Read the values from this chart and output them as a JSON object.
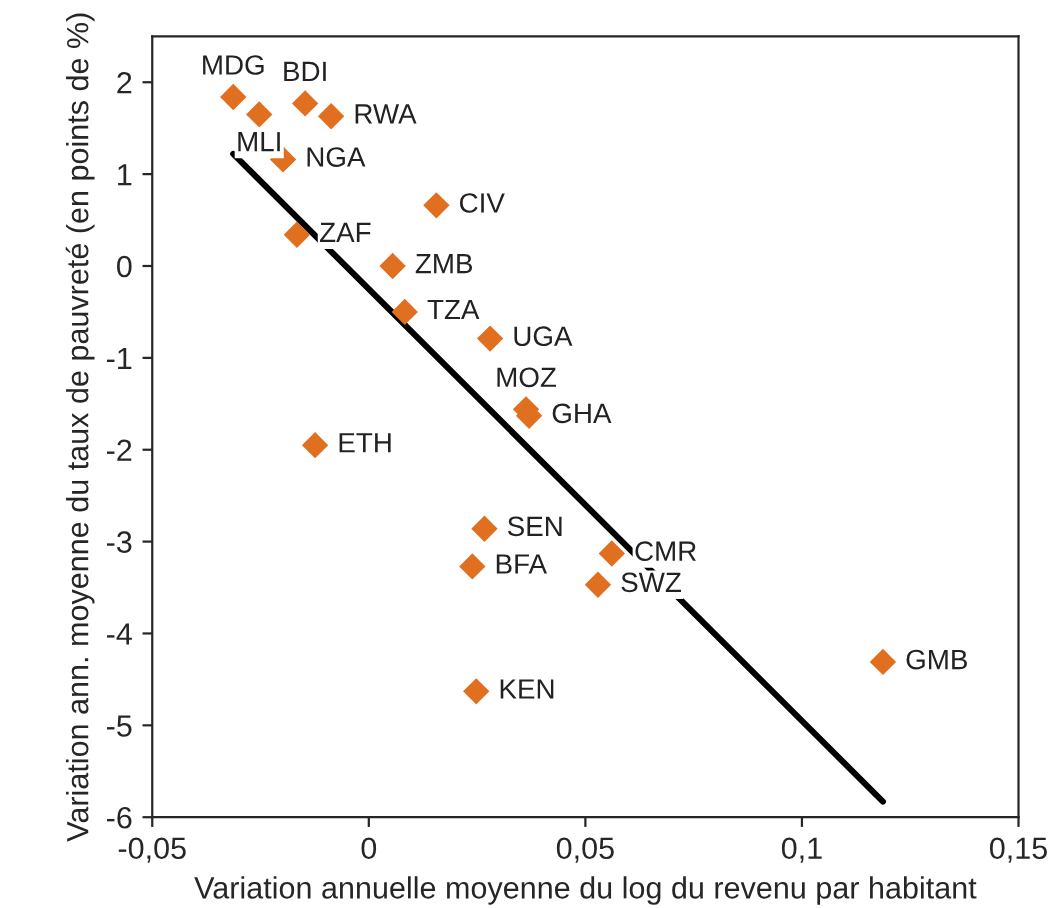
{
  "chart_data": {
    "type": "scatter",
    "xlabel": "Variation annuelle moyenne du log du revenu par habitant",
    "ylabel": "Variation ann. moyenne du taux de pauvreté (en points de %)",
    "xlim": [
      -0.05,
      0.15
    ],
    "xticks": [
      {
        "value": -0.05,
        "label": "-0,05"
      },
      0,
      {
        "value": 0.05,
        "label": "0,05"
      },
      {
        "value": 0.1,
        "label": "0,1"
      },
      {
        "value": 0.15,
        "label": "0,15"
      }
    ],
    "ylim": [
      -6,
      2.5
    ],
    "yticks": [
      -6,
      -5,
      -4,
      -3,
      -2,
      -1,
      0,
      1,
      2
    ],
    "grid": false,
    "legend": false,
    "series": [
      {
        "marker": "diamond",
        "color": "#e07020",
        "x": [
          -0.0313,
          -0.0253,
          -0.0147,
          -0.0087,
          -0.0198,
          0.0156,
          -0.0166,
          0.0055,
          0.0083,
          0.028,
          0.0363,
          0.037,
          -0.0124,
          0.0267,
          0.0561,
          0.0239,
          0.0529,
          0.0248,
          0.1187
        ],
        "values": [
          1.84,
          1.65,
          1.77,
          1.63,
          1.16,
          0.66,
          0.34,
          0.0,
          -0.5,
          -0.79,
          -1.56,
          -1.63,
          -1.95,
          -2.86,
          -3.13,
          -3.27,
          -3.47,
          -4.63,
          -4.31
        ],
        "value_labels": [
          "MDG",
          "MLI",
          "BDI",
          "RWA",
          "NGA",
          "CIV",
          "ZAF",
          "ZMB",
          "TZA",
          "UGA",
          "MOZ",
          "GHA",
          "ETH",
          "SEN",
          "CMR",
          "BFA",
          "SWZ",
          "KEN",
          "GMB"
        ]
      },
      {
        "type": "line",
        "color": "#000000",
        "line_style": "solid",
        "marker": "none",
        "x": [
          -0.0313,
          0.1187
        ],
        "values": [
          1.22,
          -5.83
        ]
      }
    ]
  }
}
